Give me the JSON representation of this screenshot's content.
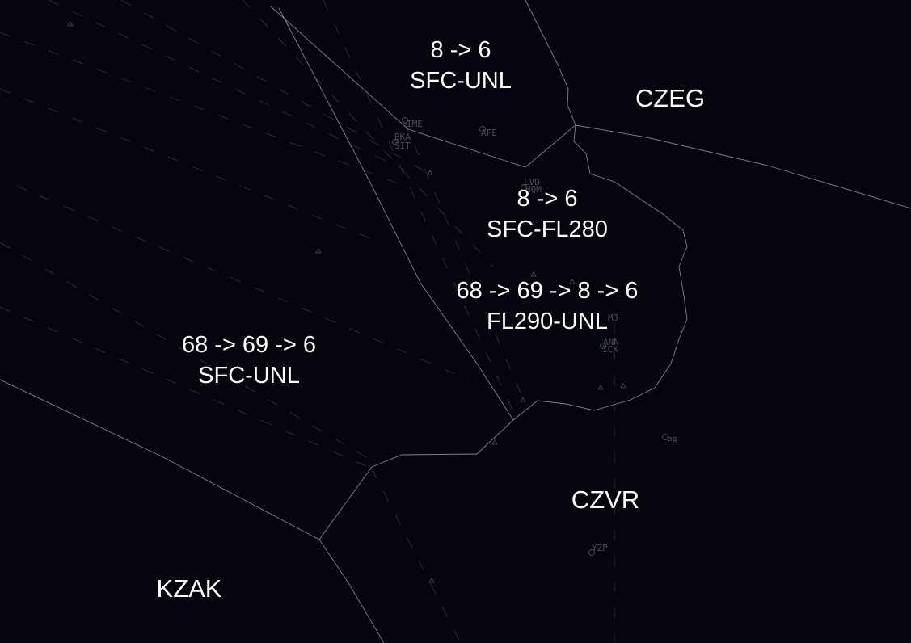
{
  "colors": {
    "background": "#05060d",
    "boundary": "#7d818c",
    "route": "#2a2d37",
    "fix": "#4b4f59",
    "label": "#ffffff"
  },
  "sectors": [
    {
      "id": "north",
      "line1": "8 -> 6",
      "line2": "SFC-UNL"
    },
    {
      "id": "east-low",
      "line1": "8 -> 6",
      "line2": "SFC-FL280"
    },
    {
      "id": "east-high",
      "line1": "68 -> 69 -> 8 -> 6",
      "line2": "FL290-UNL"
    },
    {
      "id": "west",
      "line1": "68 -> 69 -> 6",
      "line2": "SFC-UNL"
    }
  ],
  "firs": {
    "czeg": "CZEG",
    "czvr": "CZVR",
    "kzak": "KZAK"
  },
  "fixes": [
    {
      "name": "IME",
      "icon": "vor-icon"
    },
    {
      "name": "BKA",
      "icon": "vor-icon"
    },
    {
      "name": "SIT",
      "icon": "vor-icon"
    },
    {
      "name": "AFE",
      "icon": "vor-icon"
    },
    {
      "name": "LVD",
      "icon": "vor-icon"
    },
    {
      "name": "HQM",
      "icon": "vor-icon"
    },
    {
      "name": "MJ",
      "icon": "vor-icon"
    },
    {
      "name": "ANN",
      "icon": "vor-icon"
    },
    {
      "name": "ICK",
      "icon": "vor-icon"
    },
    {
      "name": "PR",
      "icon": "vor-icon"
    },
    {
      "name": "YZP",
      "icon": "vor-icon"
    }
  ]
}
